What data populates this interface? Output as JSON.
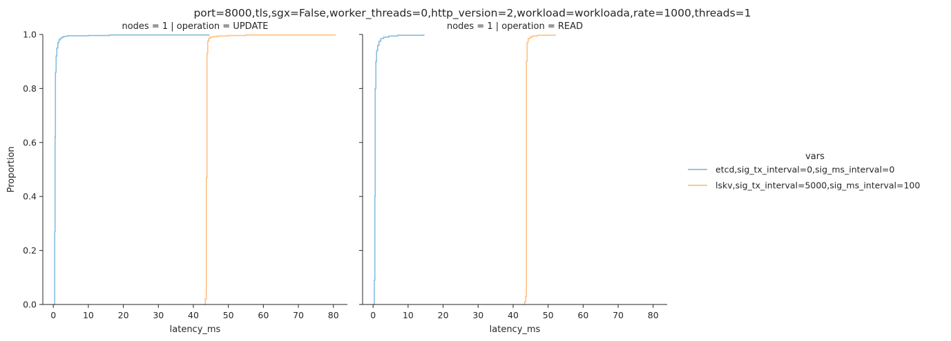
{
  "figure": {
    "suptitle": "port=8000,tls,sgx=False,worker_threads=0,http_version=2,workload=workloada,rate=1000,threads=1"
  },
  "legend": {
    "title": "vars",
    "entries": [
      {
        "label": "etcd,sig_tx_interval=0,sig_ms_interval=0",
        "color": "#86bcdc"
      },
      {
        "label": "lskv,sig_tx_interval=5000,sig_ms_interval=100",
        "color": "#ffbf80"
      }
    ],
    "placement": "right"
  },
  "chart_data": [
    {
      "type": "line",
      "subtype": "ecdf",
      "title": "nodes = 1 | operation = UPDATE",
      "xlabel": "latency_ms",
      "ylabel": "Proportion",
      "xlim": [
        -3,
        84
      ],
      "ylim": [
        0,
        1
      ],
      "xticks": [
        0,
        10,
        20,
        30,
        40,
        50,
        60,
        70,
        80
      ],
      "yticks": [
        0.0,
        0.2,
        0.4,
        0.6,
        0.8,
        1.0
      ],
      "grid": false,
      "series": [
        {
          "name": "etcd,sig_tx_interval=0,sig_ms_interval=0",
          "color": "#86bcdc",
          "x": [
            0.25,
            0.4,
            0.5,
            0.6,
            0.8,
            1.0,
            1.3,
            1.6,
            2.0,
            2.5,
            3.0,
            4.0,
            10.0,
            16.0,
            44.5
          ],
          "y": [
            0.0,
            0.27,
            0.62,
            0.86,
            0.92,
            0.95,
            0.97,
            0.98,
            0.986,
            0.99,
            0.993,
            0.995,
            0.996,
            0.998,
            1.0
          ]
        },
        {
          "name": "lskv,sig_tx_interval=5000,sig_ms_interval=100",
          "color": "#ffbf80",
          "x": [
            43.0,
            43.4,
            43.7,
            43.9,
            44.1,
            44.4,
            44.8,
            45.5,
            47.0,
            50.0,
            55.0,
            80.5
          ],
          "y": [
            0.0,
            0.02,
            0.47,
            0.93,
            0.975,
            0.985,
            0.99,
            0.992,
            0.994,
            0.996,
            0.998,
            1.0
          ]
        }
      ]
    },
    {
      "type": "line",
      "subtype": "ecdf",
      "title": "nodes = 1 | operation = READ",
      "xlabel": "latency_ms",
      "ylabel": "",
      "xlim": [
        -3,
        84
      ],
      "ylim": [
        0,
        1
      ],
      "xticks": [
        0,
        10,
        20,
        30,
        40,
        50,
        60,
        70,
        80
      ],
      "yticks": [
        0.0,
        0.2,
        0.4,
        0.6,
        0.8,
        1.0
      ],
      "grid": false,
      "series": [
        {
          "name": "etcd,sig_tx_interval=0,sig_ms_interval=0",
          "color": "#86bcdc",
          "x": [
            0.2,
            0.35,
            0.5,
            0.6,
            0.8,
            1.0,
            1.3,
            1.7,
            2.2,
            3.0,
            4.5,
            7.0,
            14.5
          ],
          "y": [
            0.0,
            0.09,
            0.4,
            0.8,
            0.9,
            0.94,
            0.96,
            0.975,
            0.985,
            0.99,
            0.994,
            0.997,
            1.0
          ]
        },
        {
          "name": "lskv,sig_tx_interval=5000,sig_ms_interval=100",
          "color": "#ffbf80",
          "x": [
            43.0,
            43.3,
            43.6,
            43.8,
            44.0,
            44.3,
            44.8,
            45.5,
            47.0,
            52.0
          ],
          "y": [
            0.0,
            0.01,
            0.03,
            0.9,
            0.97,
            0.985,
            0.99,
            0.994,
            0.997,
            1.0
          ]
        }
      ]
    }
  ]
}
